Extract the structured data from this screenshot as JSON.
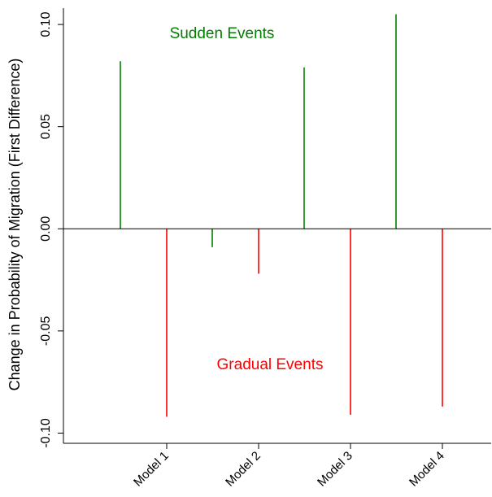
{
  "chart_data": {
    "type": "bar",
    "categories": [
      "Model 1",
      "Model 2",
      "Model 3",
      "Model 4"
    ],
    "series": [
      {
        "name": "Sudden Events",
        "color": "#008000",
        "values": [
          0.082,
          -0.009,
          0.079,
          0.105
        ]
      },
      {
        "name": "Gradual Events",
        "color": "#ff0000",
        "values": [
          -0.092,
          -0.022,
          -0.091,
          -0.087
        ]
      }
    ],
    "ylabel": "Change in Probability of Migration (First Difference)",
    "xlabel": "",
    "ylim": [
      -0.105,
      0.108
    ],
    "yticks": [
      -0.1,
      -0.05,
      0.0,
      0.05,
      0.1
    ],
    "ytick_labels": [
      "-0.10",
      "-0.05",
      "0.00",
      "0.05",
      "0.10"
    ],
    "reference_line": 0,
    "annotations": [
      {
        "text": "Sudden Events",
        "color": "#008000"
      },
      {
        "text": "Gradual Events",
        "color": "#ff0000"
      }
    ]
  }
}
